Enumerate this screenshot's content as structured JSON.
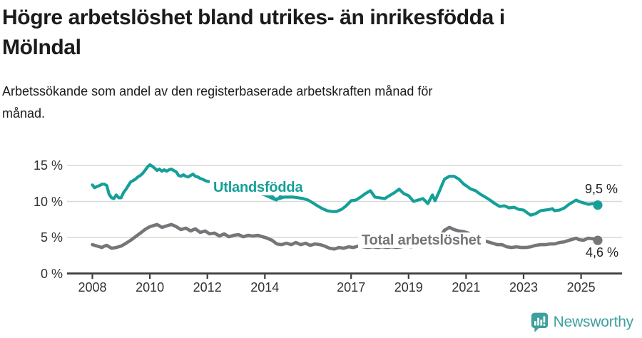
{
  "header": {
    "title_lines": [
      "Högre arbetslöshet bland utrikes- än inrikesfödda i",
      "Mölndal"
    ],
    "subtitle_lines": [
      "Arbetssökande som andel av den registerbaserade arbetskraften månad för",
      "månad."
    ]
  },
  "footer": {
    "brand": "Newsworthy"
  },
  "colors": {
    "teal_series": "#14a098",
    "gray_series": "#75757a",
    "gridline": "#d9d9d9",
    "axis": "#3c3c3c",
    "text": "#1b1b1b",
    "logo_teal": "#3da09c"
  },
  "chart_data": {
    "type": "line",
    "title": "Högre arbetslöshet bland utrikes- än inrikesfödda i Mölndal",
    "subtitle": "Arbetssökande som andel av den registerbaserade arbetskraften månad för månad.",
    "ylabel": "",
    "xlabel": "",
    "ylim": [
      0,
      15.5
    ],
    "xlim": [
      2007.1,
      2026.4
    ],
    "grid": "horizontal",
    "legend_position": "inline-labels",
    "y_axis": {
      "ticks": [
        {
          "value": 0,
          "label": "0 %"
        },
        {
          "value": 5,
          "label": "5 %"
        },
        {
          "value": 10,
          "label": "10 %"
        },
        {
          "value": 15,
          "label": "15 %"
        }
      ]
    },
    "x_axis": {
      "tick_years": [
        2008,
        2010,
        2012,
        2014,
        2017,
        2019,
        2021,
        2023,
        2025
      ],
      "tick_labels": [
        "2008",
        "2010",
        "2012",
        "2014",
        "2017",
        "2019",
        "2021",
        "2023",
        "2025"
      ]
    },
    "series": [
      {
        "name": "Utlandsfödda",
        "slug": "utlandsfodda",
        "color": "#14a098",
        "end_label": "9,5 %",
        "end_value": 9.5,
        "line_width": 4.2,
        "pointer": {
          "x": 2014.4,
          "y": 10.15
        },
        "points": [
          [
            2008.0,
            12.3
          ],
          [
            2008.08,
            11.9
          ],
          [
            2008.17,
            12.1
          ],
          [
            2008.25,
            12.2
          ],
          [
            2008.33,
            12.4
          ],
          [
            2008.42,
            12.4
          ],
          [
            2008.5,
            12.2
          ],
          [
            2008.58,
            11.0
          ],
          [
            2008.67,
            10.5
          ],
          [
            2008.75,
            10.4
          ],
          [
            2008.83,
            10.9
          ],
          [
            2008.92,
            10.5
          ],
          [
            2009.0,
            10.5
          ],
          [
            2009.08,
            11.2
          ],
          [
            2009.17,
            11.7
          ],
          [
            2009.25,
            12.2
          ],
          [
            2009.33,
            12.7
          ],
          [
            2009.42,
            12.9
          ],
          [
            2009.5,
            13.1
          ],
          [
            2009.58,
            13.4
          ],
          [
            2009.67,
            13.6
          ],
          [
            2009.75,
            13.9
          ],
          [
            2009.83,
            14.3
          ],
          [
            2009.92,
            14.8
          ],
          [
            2010.0,
            15.1
          ],
          [
            2010.08,
            14.9
          ],
          [
            2010.17,
            14.6
          ],
          [
            2010.25,
            14.3
          ],
          [
            2010.33,
            14.5
          ],
          [
            2010.42,
            14.2
          ],
          [
            2010.5,
            14.4
          ],
          [
            2010.58,
            14.2
          ],
          [
            2010.67,
            14.4
          ],
          [
            2010.75,
            14.5
          ],
          [
            2010.83,
            14.3
          ],
          [
            2010.92,
            14.1
          ],
          [
            2011.0,
            13.6
          ],
          [
            2011.08,
            13.5
          ],
          [
            2011.17,
            13.7
          ],
          [
            2011.25,
            13.5
          ],
          [
            2011.33,
            13.4
          ],
          [
            2011.42,
            13.6
          ],
          [
            2011.5,
            13.8
          ],
          [
            2011.58,
            13.5
          ],
          [
            2011.67,
            13.4
          ],
          [
            2011.75,
            13.2
          ],
          [
            2011.83,
            13.1
          ],
          [
            2011.92,
            12.9
          ],
          [
            2012.0,
            12.8
          ],
          [
            2012.17,
            12.7
          ],
          [
            2012.33,
            12.5
          ],
          [
            2012.5,
            12.6
          ],
          [
            2012.67,
            12.4
          ],
          [
            2012.83,
            12.2
          ],
          [
            2013.0,
            12.1
          ],
          [
            2013.17,
            11.9
          ],
          [
            2013.33,
            11.7
          ],
          [
            2013.5,
            11.5
          ],
          [
            2013.67,
            11.3
          ],
          [
            2013.83,
            11.1
          ],
          [
            2014.0,
            10.9
          ],
          [
            2014.17,
            10.6
          ],
          [
            2014.33,
            10.3
          ],
          [
            2014.5,
            10.4
          ],
          [
            2014.67,
            10.6
          ],
          [
            2014.83,
            10.6
          ],
          [
            2015.0,
            10.6
          ],
          [
            2015.17,
            10.5
          ],
          [
            2015.33,
            10.4
          ],
          [
            2015.5,
            10.2
          ],
          [
            2015.67,
            9.8
          ],
          [
            2015.83,
            9.4
          ],
          [
            2016.0,
            9.0
          ],
          [
            2016.17,
            8.7
          ],
          [
            2016.33,
            8.6
          ],
          [
            2016.5,
            8.6
          ],
          [
            2016.67,
            8.9
          ],
          [
            2016.83,
            9.4
          ],
          [
            2017.0,
            10.1
          ],
          [
            2017.17,
            10.2
          ],
          [
            2017.33,
            10.6
          ],
          [
            2017.5,
            11.1
          ],
          [
            2017.67,
            11.5
          ],
          [
            2017.83,
            10.6
          ],
          [
            2018.0,
            10.5
          ],
          [
            2018.17,
            10.4
          ],
          [
            2018.33,
            10.8
          ],
          [
            2018.5,
            11.2
          ],
          [
            2018.67,
            11.7
          ],
          [
            2018.83,
            11.1
          ],
          [
            2019.0,
            10.8
          ],
          [
            2019.17,
            10.0
          ],
          [
            2019.33,
            10.2
          ],
          [
            2019.5,
            10.4
          ],
          [
            2019.67,
            9.7
          ],
          [
            2019.83,
            10.9
          ],
          [
            2019.92,
            10.1
          ],
          [
            2020.08,
            11.5
          ],
          [
            2020.17,
            12.4
          ],
          [
            2020.25,
            13.1
          ],
          [
            2020.42,
            13.5
          ],
          [
            2020.58,
            13.5
          ],
          [
            2020.75,
            13.1
          ],
          [
            2020.92,
            12.4
          ],
          [
            2021.0,
            12.2
          ],
          [
            2021.17,
            11.7
          ],
          [
            2021.33,
            11.5
          ],
          [
            2021.5,
            11.0
          ],
          [
            2021.67,
            10.6
          ],
          [
            2021.83,
            10.2
          ],
          [
            2022.0,
            9.7
          ],
          [
            2022.17,
            9.3
          ],
          [
            2022.33,
            9.4
          ],
          [
            2022.5,
            9.1
          ],
          [
            2022.67,
            9.2
          ],
          [
            2022.83,
            8.9
          ],
          [
            2023.0,
            8.8
          ],
          [
            2023.17,
            8.3
          ],
          [
            2023.25,
            8.1
          ],
          [
            2023.42,
            8.3
          ],
          [
            2023.58,
            8.7
          ],
          [
            2023.75,
            8.8
          ],
          [
            2023.92,
            8.9
          ],
          [
            2024.0,
            9.0
          ],
          [
            2024.08,
            8.7
          ],
          [
            2024.25,
            8.8
          ],
          [
            2024.42,
            9.1
          ],
          [
            2024.58,
            9.6
          ],
          [
            2024.75,
            10.0
          ],
          [
            2024.83,
            10.2
          ],
          [
            2024.92,
            10.0
          ],
          [
            2025.08,
            9.8
          ],
          [
            2025.25,
            9.6
          ],
          [
            2025.42,
            9.7
          ],
          [
            2025.58,
            9.5
          ]
        ]
      },
      {
        "name": "Total arbetslöshet",
        "slug": "total-arbetsloshet",
        "color": "#75757a",
        "end_label": "4,6 %",
        "end_value": 4.6,
        "line_width": 4.6,
        "points": [
          [
            2008.0,
            4.0
          ],
          [
            2008.08,
            3.9
          ],
          [
            2008.25,
            3.7
          ],
          [
            2008.33,
            3.6
          ],
          [
            2008.42,
            3.8
          ],
          [
            2008.5,
            3.9
          ],
          [
            2008.58,
            3.7
          ],
          [
            2008.67,
            3.5
          ],
          [
            2008.83,
            3.6
          ],
          [
            2009.0,
            3.8
          ],
          [
            2009.17,
            4.2
          ],
          [
            2009.33,
            4.6
          ],
          [
            2009.5,
            5.1
          ],
          [
            2009.67,
            5.6
          ],
          [
            2009.83,
            6.1
          ],
          [
            2010.0,
            6.5
          ],
          [
            2010.17,
            6.7
          ],
          [
            2010.25,
            6.8
          ],
          [
            2010.42,
            6.4
          ],
          [
            2010.58,
            6.6
          ],
          [
            2010.75,
            6.8
          ],
          [
            2010.92,
            6.5
          ],
          [
            2011.08,
            6.1
          ],
          [
            2011.25,
            6.3
          ],
          [
            2011.42,
            5.9
          ],
          [
            2011.58,
            6.2
          ],
          [
            2011.75,
            5.7
          ],
          [
            2011.92,
            5.9
          ],
          [
            2012.08,
            5.5
          ],
          [
            2012.25,
            5.6
          ],
          [
            2012.42,
            5.2
          ],
          [
            2012.58,
            5.5
          ],
          [
            2012.75,
            5.1
          ],
          [
            2012.92,
            5.3
          ],
          [
            2013.08,
            5.4
          ],
          [
            2013.25,
            5.1
          ],
          [
            2013.42,
            5.3
          ],
          [
            2013.58,
            5.2
          ],
          [
            2013.75,
            5.3
          ],
          [
            2013.92,
            5.1
          ],
          [
            2014.08,
            4.9
          ],
          [
            2014.25,
            4.6
          ],
          [
            2014.42,
            4.1
          ],
          [
            2014.58,
            4.0
          ],
          [
            2014.75,
            4.2
          ],
          [
            2014.92,
            4.0
          ],
          [
            2015.08,
            4.3
          ],
          [
            2015.25,
            4.0
          ],
          [
            2015.42,
            4.2
          ],
          [
            2015.58,
            3.9
          ],
          [
            2015.75,
            4.1
          ],
          [
            2015.92,
            4.0
          ],
          [
            2016.08,
            3.8
          ],
          [
            2016.25,
            3.5
          ],
          [
            2016.42,
            3.4
          ],
          [
            2016.58,
            3.6
          ],
          [
            2016.75,
            3.5
          ],
          [
            2016.92,
            3.7
          ],
          [
            2017.08,
            3.6
          ],
          [
            2017.25,
            3.8
          ],
          [
            2017.42,
            3.7
          ],
          [
            2017.58,
            3.6
          ],
          [
            2017.75,
            3.7
          ],
          [
            2017.92,
            3.6
          ],
          [
            2018.08,
            3.7
          ],
          [
            2018.25,
            3.6
          ],
          [
            2018.42,
            3.7
          ],
          [
            2018.58,
            3.6
          ],
          [
            2018.75,
            3.7
          ],
          [
            2018.92,
            3.8
          ],
          [
            2019.08,
            3.7
          ],
          [
            2019.25,
            3.8
          ],
          [
            2019.42,
            3.9
          ],
          [
            2019.58,
            4.0
          ],
          [
            2019.75,
            4.1
          ],
          [
            2019.92,
            4.3
          ],
          [
            2020.08,
            5.0
          ],
          [
            2020.25,
            6.0
          ],
          [
            2020.42,
            6.4
          ],
          [
            2020.58,
            6.1
          ],
          [
            2020.75,
            5.9
          ],
          [
            2020.92,
            5.8
          ],
          [
            2021.08,
            5.6
          ],
          [
            2021.25,
            5.2
          ],
          [
            2021.42,
            4.9
          ],
          [
            2021.58,
            4.6
          ],
          [
            2021.75,
            4.4
          ],
          [
            2021.92,
            4.2
          ],
          [
            2022.08,
            4.0
          ],
          [
            2022.25,
            4.0
          ],
          [
            2022.42,
            3.7
          ],
          [
            2022.58,
            3.6
          ],
          [
            2022.75,
            3.7
          ],
          [
            2022.92,
            3.6
          ],
          [
            2023.08,
            3.6
          ],
          [
            2023.25,
            3.7
          ],
          [
            2023.42,
            3.9
          ],
          [
            2023.58,
            4.0
          ],
          [
            2023.75,
            4.0
          ],
          [
            2023.92,
            4.1
          ],
          [
            2024.08,
            4.1
          ],
          [
            2024.25,
            4.3
          ],
          [
            2024.42,
            4.4
          ],
          [
            2024.58,
            4.6
          ],
          [
            2024.75,
            4.8
          ],
          [
            2024.83,
            4.9
          ],
          [
            2024.92,
            4.7
          ],
          [
            2025.08,
            4.6
          ],
          [
            2025.25,
            4.9
          ],
          [
            2025.42,
            4.8
          ],
          [
            2025.58,
            4.6
          ]
        ]
      }
    ]
  }
}
